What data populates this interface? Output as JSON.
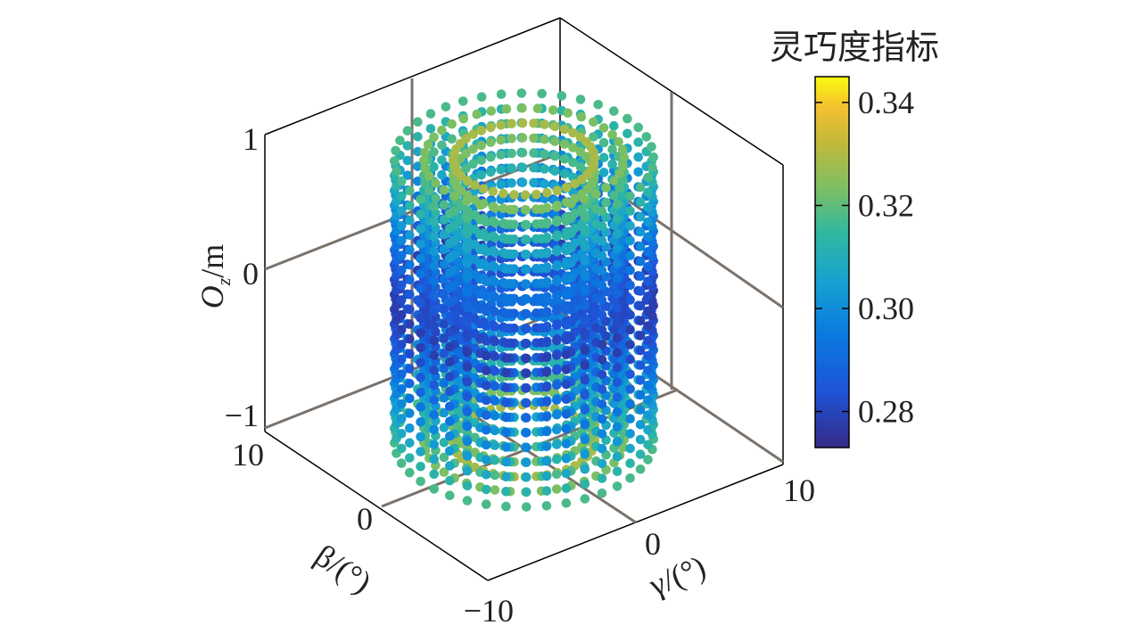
{
  "chart_data": {
    "type": "scatter",
    "subtype": "3d-scatter",
    "title": "",
    "axes": {
      "x": {
        "label": "γ/(°)",
        "range": [
          -10,
          10
        ],
        "ticks": [
          "0",
          "10"
        ]
      },
      "y": {
        "label": "β/(°)",
        "range": [
          -10,
          10
        ],
        "ticks": [
          "−10",
          "0",
          "10"
        ]
      },
      "z": {
        "label_main": "O",
        "label_sub": "z",
        "label_rest": "/m",
        "range": [
          -1,
          1
        ],
        "ticks": [
          "−1",
          "0",
          "1"
        ]
      }
    },
    "grid": true,
    "colorbar": {
      "title": "灵巧度指标",
      "range": [
        0.273,
        0.345
      ],
      "ticks": [
        {
          "value": 0.34,
          "label": "0.34"
        },
        {
          "value": 0.32,
          "label": "0.32"
        },
        {
          "value": 0.3,
          "label": "0.30"
        },
        {
          "value": 0.28,
          "label": "0.28"
        }
      ],
      "colormap": "parula",
      "position": "right"
    },
    "series": [
      {
        "x_range": [
          -10,
          10
        ],
        "y_range": [
          -10,
          10
        ],
        "z_range": [
          -0.95,
          0.95
        ],
        "color_range": [
          0.275,
          0.345
        ],
        "notes_shape": "cylindrical point cloud; index highest at top/bottom center, lowest along middle band edges"
      }
    ]
  }
}
